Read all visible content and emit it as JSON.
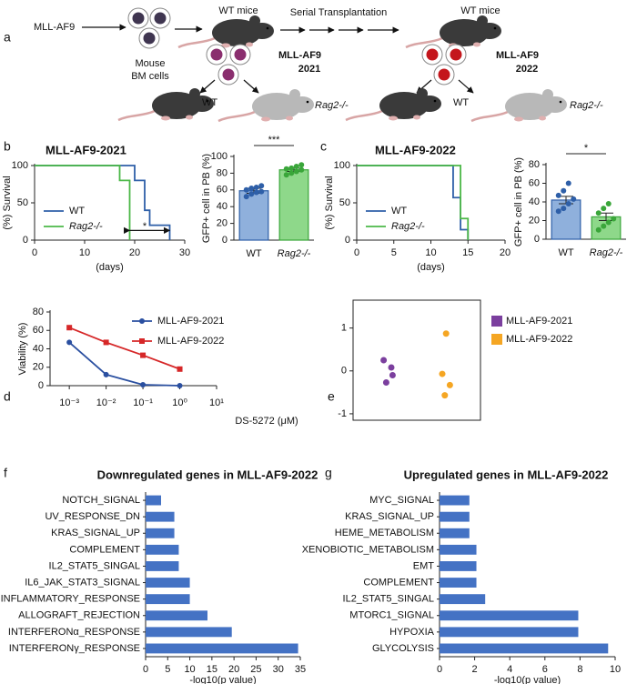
{
  "panel_a": {
    "label": "a",
    "source": "MLL-AF9",
    "cells": [
      "Mouse",
      "BM cells"
    ],
    "recipient": "WT mice",
    "process": "Serial Transplantation",
    "recipient2": "WT mice",
    "groups": [
      {
        "name": "MLL-AF9",
        "year": "2021",
        "wt": "WT",
        "ko": "Rag2-/-"
      },
      {
        "name": "MLL-AF9",
        "year": "2022",
        "wt": "WT",
        "ko": "Rag2-/-"
      }
    ]
  },
  "chart_data": [
    {
      "type": "line",
      "label": "b",
      "title": "MLL-AF9-2021",
      "xlabel": "(days)",
      "ylabel": "(%) Survival",
      "xlim": [
        0,
        30
      ],
      "xticks": [
        0,
        10,
        20,
        30
      ],
      "ylim": [
        0,
        100
      ],
      "yticks": [
        0,
        50,
        100
      ],
      "annotation": "*",
      "legend": "bottom-left",
      "series": [
        {
          "name": "WT",
          "color": "#2e5fa8",
          "x": [
            0,
            20,
            20,
            22,
            22,
            23,
            23,
            27,
            27
          ],
          "values": [
            100,
            100,
            80,
            80,
            40,
            40,
            20,
            20,
            0
          ]
        },
        {
          "name": "Rag2-/-",
          "color": "#4cb848",
          "x": [
            0,
            17,
            17,
            19,
            19
          ],
          "values": [
            100,
            100,
            80,
            80,
            0
          ]
        }
      ]
    },
    {
      "type": "bar",
      "ylabel": "GFP+ cell in PB (%)",
      "ylim": [
        0,
        100
      ],
      "yticks": [
        0,
        20,
        40,
        60,
        80,
        100
      ],
      "annotation": "***",
      "categories": [
        "WT",
        "Rag2-/-"
      ],
      "values": [
        59,
        84
      ],
      "errors": [
        3,
        2
      ],
      "colors": [
        "#8fb0dc",
        "#8ed88a"
      ],
      "point_colors": [
        "#2e5fa8",
        "#3aa63a"
      ],
      "points": [
        [
          52,
          55,
          57,
          58,
          60,
          62,
          63,
          65
        ],
        [
          78,
          80,
          82,
          84,
          85,
          86,
          88,
          90
        ]
      ]
    },
    {
      "type": "line",
      "label": "c",
      "title": "MLL-AF9-2022",
      "xlabel": "(days)",
      "ylabel": "(%) Survival",
      "xlim": [
        0,
        20
      ],
      "xticks": [
        0,
        5,
        10,
        15,
        20
      ],
      "ylim": [
        0,
        100
      ],
      "yticks": [
        0,
        50,
        100
      ],
      "legend": "bottom-left",
      "series": [
        {
          "name": "WT",
          "color": "#2e5fa8",
          "x": [
            0,
            13,
            13,
            14,
            14,
            15,
            15
          ],
          "values": [
            100,
            100,
            57,
            57,
            14,
            14,
            0
          ]
        },
        {
          "name": "Rag2-/-",
          "color": "#4cb848",
          "x": [
            0,
            14,
            14,
            15,
            15
          ],
          "values": [
            100,
            100,
            29,
            29,
            0
          ]
        }
      ]
    },
    {
      "type": "bar",
      "ylabel": "GFP+ cell in PB (%)",
      "ylim": [
        0,
        80
      ],
      "yticks": [
        0,
        20,
        40,
        60,
        80
      ],
      "annotation": "*",
      "categories": [
        "WT",
        "Rag2-/-"
      ],
      "values": [
        42,
        24
      ],
      "errors": [
        4,
        4
      ],
      "colors": [
        "#8fb0dc",
        "#8ed88a"
      ],
      "point_colors": [
        "#2e5fa8",
        "#3aa63a"
      ],
      "points": [
        [
          30,
          33,
          38,
          43,
          47,
          52,
          60
        ],
        [
          10,
          14,
          18,
          22,
          28,
          33,
          38
        ]
      ]
    },
    {
      "type": "line",
      "label": "d",
      "xlabel": "DS-5272 (μM)",
      "ylabel": "Viability (%)",
      "xscale": "log",
      "xlim": [
        0.0003,
        10
      ],
      "xticks": [
        {
          "value": 0.001,
          "label": "10⁻³"
        },
        {
          "value": 0.01,
          "label": "10⁻²"
        },
        {
          "value": 0.1,
          "label": "10⁻¹"
        },
        {
          "value": 1,
          "label": "10⁰"
        },
        {
          "value": 10,
          "label": "10¹"
        }
      ],
      "ylim": [
        0,
        80
      ],
      "yticks": [
        0,
        20,
        40,
        60,
        80
      ],
      "legend": "top-right",
      "series": [
        {
          "name": "MLL-AF9-2021",
          "color": "#2a4fa0",
          "marker": "circle",
          "x": [
            0.001,
            0.01,
            0.1,
            1
          ],
          "values": [
            47,
            12,
            1,
            0
          ]
        },
        {
          "name": "MLL-AF9-2022",
          "color": "#d62728",
          "marker": "square",
          "x": [
            0.001,
            0.01,
            0.1,
            1
          ],
          "values": [
            63,
            47,
            33,
            18
          ]
        }
      ]
    },
    {
      "type": "scatter",
      "label": "e",
      "xlim": [
        0,
        1
      ],
      "ylim": [
        -1.15,
        1.65
      ],
      "yticks": [
        -1,
        0,
        1
      ],
      "frame": true,
      "legend": "outside-right",
      "series": [
        {
          "name": "MLL-AF9-2021",
          "color": "#7b3f9e",
          "x": [
            0.24,
            0.3,
            0.31,
            0.26
          ],
          "values": [
            0.25,
            0.08,
            -0.1,
            -0.27
          ]
        },
        {
          "name": "MLL-AF9-2022",
          "color": "#f5a623",
          "x": [
            0.73,
            0.7,
            0.76,
            0.72
          ],
          "values": [
            0.87,
            -0.07,
            -0.33,
            -0.57
          ]
        }
      ]
    },
    {
      "type": "barh",
      "label": "f",
      "title": "Downregulated genes in MLL-AF9-2022",
      "xlabel": "-log10(p value)",
      "xlim": [
        0,
        35
      ],
      "xticks": [
        0,
        5,
        10,
        15,
        20,
        25,
        30,
        35
      ],
      "color": "#4472c4",
      "categories": [
        "NOTCH_SIGNAL",
        "UV_RESPONSE_DN",
        "KRAS_SIGNAL_UP",
        "COMPLEMENT",
        "IL2_STAT5_SINGAL",
        "IL6_JAK_STAT3_SIGNAL",
        "INFLAMMATORY_RESPONSE",
        "ALLOGRAFT_REJECTION",
        "INTERFERONα_RESPONSE",
        "INTERFERONγ_RESPONSE"
      ],
      "values": [
        3.5,
        6.5,
        6.5,
        7.5,
        7.5,
        10,
        10,
        14,
        19.5,
        34.5
      ]
    },
    {
      "type": "barh",
      "label": "g",
      "title": "Upregulated genes in MLL-AF9-2022",
      "xlabel": "-log10(p value)",
      "xlim": [
        0,
        10
      ],
      "xticks": [
        0,
        2,
        4,
        6,
        8,
        10
      ],
      "color": "#4472c4",
      "categories": [
        "MYC_SIGNAL",
        "KRAS_SIGNAL_UP",
        "HEME_METABOLISM",
        "XENOBIOTIC_METABOLISM",
        "EMT",
        "COMPLEMENT",
        "IL2_STAT5_SINGAL",
        "MTORC1_SIGNAL",
        "HYPOXIA",
        "GLYCOLYSIS"
      ],
      "values": [
        1.7,
        1.7,
        1.7,
        2.1,
        2.1,
        2.1,
        2.6,
        7.9,
        7.9,
        9.6
      ]
    }
  ]
}
